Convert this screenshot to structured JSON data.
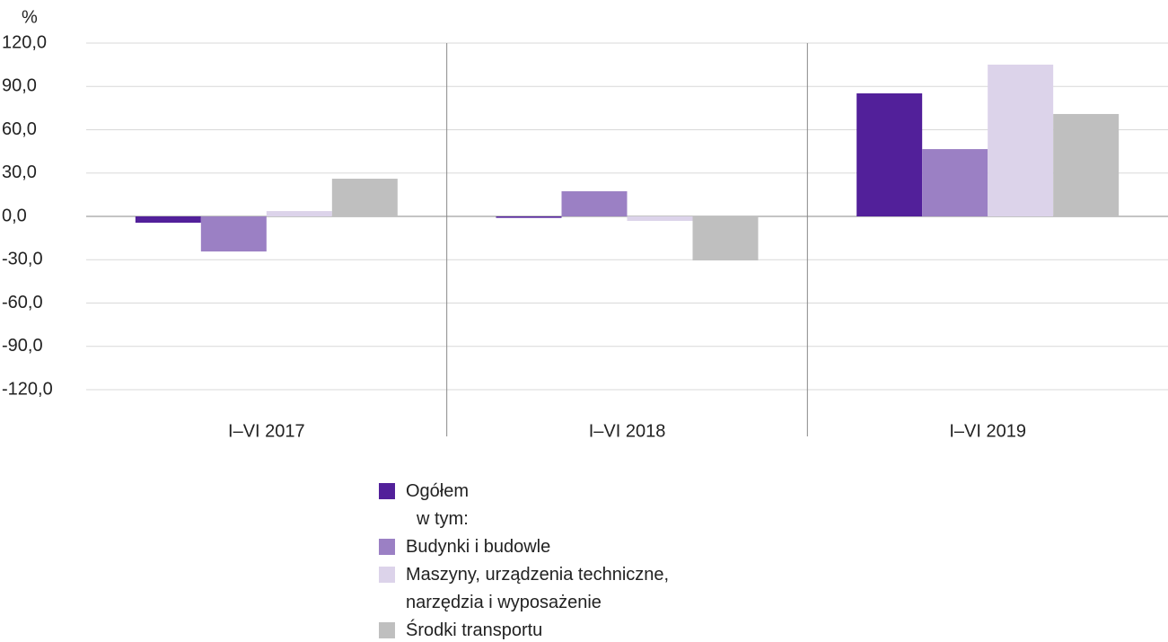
{
  "chart_data": {
    "type": "bar",
    "y_unit": "%",
    "categories": [
      "I–VI 2017",
      "I–VI 2018",
      "I–VI 2019"
    ],
    "series": [
      {
        "name": "Ogółem",
        "color": "#52209a",
        "values": [
          -4.4,
          -1.0,
          85.2
        ]
      },
      {
        "name": "Budynki i budowle",
        "color": "#9b80c4",
        "values": [
          -24.3,
          17.4,
          46.6
        ]
      },
      {
        "name": "Maszyny, urządzenia techniczne, narzędzia i wyposażenie",
        "color": "#dcd3ea",
        "values": [
          3.7,
          -3.1,
          105.1
        ]
      },
      {
        "name": "Środki transportu",
        "color": "#bfbfbf",
        "values": [
          26.1,
          -30.5,
          70.9
        ]
      }
    ],
    "legend_note": "w tym:",
    "ylim": [
      -120,
      120
    ],
    "yticks": [
      {
        "value": -120,
        "label": "-120,0"
      },
      {
        "value": -90,
        "label": "-90,0"
      },
      {
        "value": -60,
        "label": "-60,0"
      },
      {
        "value": -30,
        "label": "-30,0"
      },
      {
        "value": 0,
        "label": "0,0"
      },
      {
        "value": 30,
        "label": "30,0"
      },
      {
        "value": 60,
        "label": "60,0"
      },
      {
        "value": 90,
        "label": "90,0"
      },
      {
        "value": 120,
        "label": "120,0"
      }
    ],
    "grid": true
  }
}
